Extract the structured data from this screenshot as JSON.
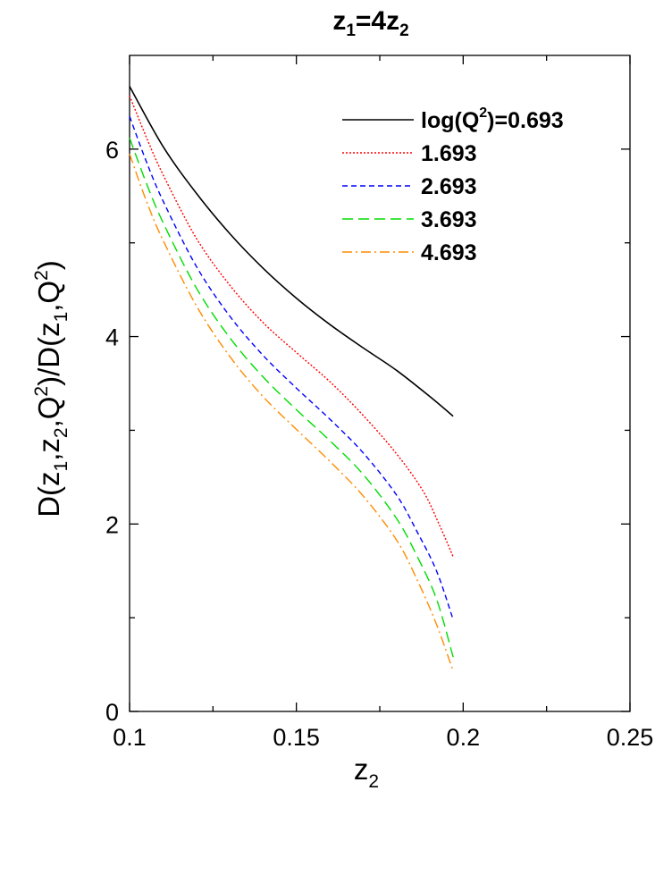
{
  "chart_data": {
    "type": "line",
    "title": {
      "base": "z",
      "sub1": "1",
      "mid": "=4z",
      "sub2": "2"
    },
    "xlabel": {
      "base": "z",
      "sub": "2"
    },
    "ylabel": {
      "p1": "D(z",
      "s1": "1",
      "p2": ",z",
      "s2": "2",
      "p3": ",Q",
      "e1": "2",
      "p4": ")/D(z",
      "s3": "1",
      "p5": ",Q",
      "e2": "2",
      "p6": ")"
    },
    "xlim": [
      0.1,
      0.25
    ],
    "ylim": [
      0,
      7
    ],
    "xticks": [
      {
        "value": 0.1,
        "label": "0.1"
      },
      {
        "value": 0.15,
        "label": "0.15"
      },
      {
        "value": 0.2,
        "label": "0.2"
      },
      {
        "value": 0.25,
        "label": "0.25"
      }
    ],
    "yticks": [
      {
        "value": 0,
        "label": "0"
      },
      {
        "value": 2,
        "label": "2"
      },
      {
        "value": 4,
        "label": "4"
      },
      {
        "value": 6,
        "label": "6"
      }
    ],
    "minor_xticks": [
      0.125,
      0.175,
      0.225
    ],
    "minor_yticks": [
      1,
      3,
      5
    ],
    "grid": false,
    "legend": {
      "placement": "top-right",
      "first_label": {
        "pre": "log(Q",
        "sup": "2",
        "post": ")=0.693"
      }
    },
    "series": [
      {
        "name": "log(Q2)=0.693",
        "label": "log(Q2)=0.693",
        "color": "#000000",
        "dash": "solid",
        "x": [
          0.1,
          0.11,
          0.12,
          0.13,
          0.14,
          0.15,
          0.16,
          0.17,
          0.18,
          0.19,
          0.197
        ],
        "y": [
          6.67,
          6.03,
          5.53,
          5.1,
          4.73,
          4.41,
          4.13,
          3.88,
          3.64,
          3.36,
          3.15
        ]
      },
      {
        "name": "1.693",
        "label": "1.693",
        "color": "#ff0000",
        "dash": "dotted",
        "x": [
          0.1,
          0.105,
          0.11,
          0.12,
          0.13,
          0.14,
          0.15,
          0.16,
          0.17,
          0.18,
          0.188,
          0.193,
          0.197
        ],
        "y": [
          6.57,
          6.13,
          5.73,
          5.05,
          4.55,
          4.15,
          3.83,
          3.52,
          3.16,
          2.75,
          2.35,
          1.98,
          1.65
        ]
      },
      {
        "name": "2.693",
        "label": "2.693",
        "color": "#0000ff",
        "dash": "dashed",
        "x": [
          0.1,
          0.105,
          0.11,
          0.12,
          0.13,
          0.14,
          0.15,
          0.16,
          0.17,
          0.18,
          0.186,
          0.192,
          0.197
        ],
        "y": [
          6.35,
          5.87,
          5.45,
          4.75,
          4.22,
          3.8,
          3.45,
          3.12,
          2.76,
          2.31,
          1.93,
          1.5,
          0.98
        ]
      },
      {
        "name": "3.693",
        "label": "3.693",
        "color": "#00dd00",
        "dash": "long-dash",
        "x": [
          0.1,
          0.105,
          0.11,
          0.12,
          0.13,
          0.14,
          0.15,
          0.16,
          0.17,
          0.18,
          0.186,
          0.192,
          0.197
        ],
        "y": [
          6.12,
          5.64,
          5.22,
          4.52,
          3.99,
          3.57,
          3.22,
          2.89,
          2.53,
          2.06,
          1.67,
          1.2,
          0.58
        ]
      },
      {
        "name": "4.693",
        "label": "4.693",
        "color": "#ff8c00",
        "dash": "dash-dot",
        "x": [
          0.1,
          0.105,
          0.11,
          0.12,
          0.13,
          0.14,
          0.15,
          0.16,
          0.17,
          0.18,
          0.186,
          0.192,
          0.197
        ],
        "y": [
          5.95,
          5.45,
          5.03,
          4.33,
          3.79,
          3.36,
          3.01,
          2.67,
          2.3,
          1.83,
          1.42,
          0.93,
          0.43
        ]
      }
    ]
  }
}
